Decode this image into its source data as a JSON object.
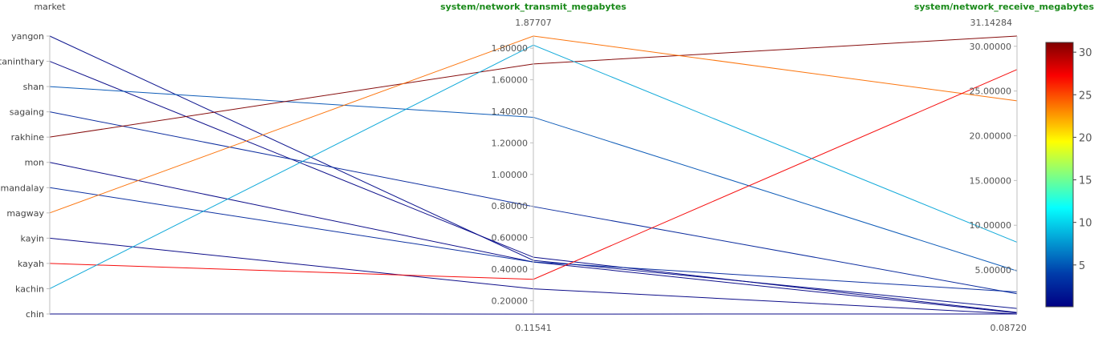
{
  "chart_data": {
    "type": "parallel_coordinates",
    "dimensions": [
      {
        "name": "market",
        "kind": "categorical",
        "categories": [
          "yangon",
          "taninthary",
          "shan",
          "sagaing",
          "rakhine",
          "mon",
          "mandalay",
          "magway",
          "kayin",
          "kayah",
          "kachin",
          "chin"
        ]
      },
      {
        "name": "system/network_transmit_megabytes",
        "kind": "numeric",
        "range": [
          0.11541,
          1.87707
        ],
        "range_labels": [
          "0.11541",
          "1.87707"
        ],
        "ticks": [
          0.2,
          0.4,
          0.6,
          0.8,
          1.0,
          1.2,
          1.4,
          1.6,
          1.8
        ],
        "tick_labels": [
          "0.20000",
          "0.40000",
          "0.60000",
          "0.80000",
          "1.00000",
          "1.20000",
          "1.40000",
          "1.60000",
          "1.80000"
        ]
      },
      {
        "name": "system/network_receive_megabytes",
        "kind": "numeric",
        "range": [
          0.0872,
          31.14284
        ],
        "range_labels": [
          "0.08720",
          "31.14284"
        ],
        "ticks": [
          5,
          10,
          15,
          20,
          25,
          30
        ],
        "tick_labels": [
          "5.00000",
          "10.00000",
          "15.00000",
          "20.00000",
          "25.00000",
          "30.00000"
        ]
      }
    ],
    "colorbar": {
      "min": 0.0872,
      "max": 31.14284,
      "ticks": [
        5,
        10,
        15,
        20,
        25,
        30
      ],
      "tick_labels": [
        "5",
        "10",
        "15",
        "20",
        "25",
        "30"
      ],
      "colorscale": "jet"
    },
    "rows": [
      {
        "market": "yangon",
        "transmit": 0.455,
        "receive": 0.7,
        "color": 0.7
      },
      {
        "market": "taninthary",
        "transmit": 0.475,
        "receive": 0.25,
        "color": 0.25
      },
      {
        "market": "shan",
        "transmit": 1.362,
        "receive": 4.9,
        "color": 4.9
      },
      {
        "market": "sagaing",
        "transmit": 0.796,
        "receive": 2.35,
        "color": 2.35
      },
      {
        "market": "rakhine",
        "transmit": 1.7,
        "receive": 31.14284,
        "color": 31.14284
      },
      {
        "market": "mon",
        "transmit": 0.445,
        "receive": 0.2,
        "color": 0.2
      },
      {
        "market": "mandalay",
        "transmit": 0.445,
        "receive": 2.55,
        "color": 2.55
      },
      {
        "market": "magway",
        "transmit": 1.87707,
        "receive": 23.9,
        "color": 23.9
      },
      {
        "market": "kayin",
        "transmit": 0.275,
        "receive": 0.0872,
        "color": 0.0872
      },
      {
        "market": "kayah",
        "transmit": 0.335,
        "receive": 27.4,
        "color": 27.4
      },
      {
        "market": "kachin",
        "transmit": 1.82,
        "receive": 8.1,
        "color": 8.1
      },
      {
        "market": "chin",
        "transmit": 0.115,
        "receive": 0.09,
        "color": 0.09
      }
    ]
  }
}
